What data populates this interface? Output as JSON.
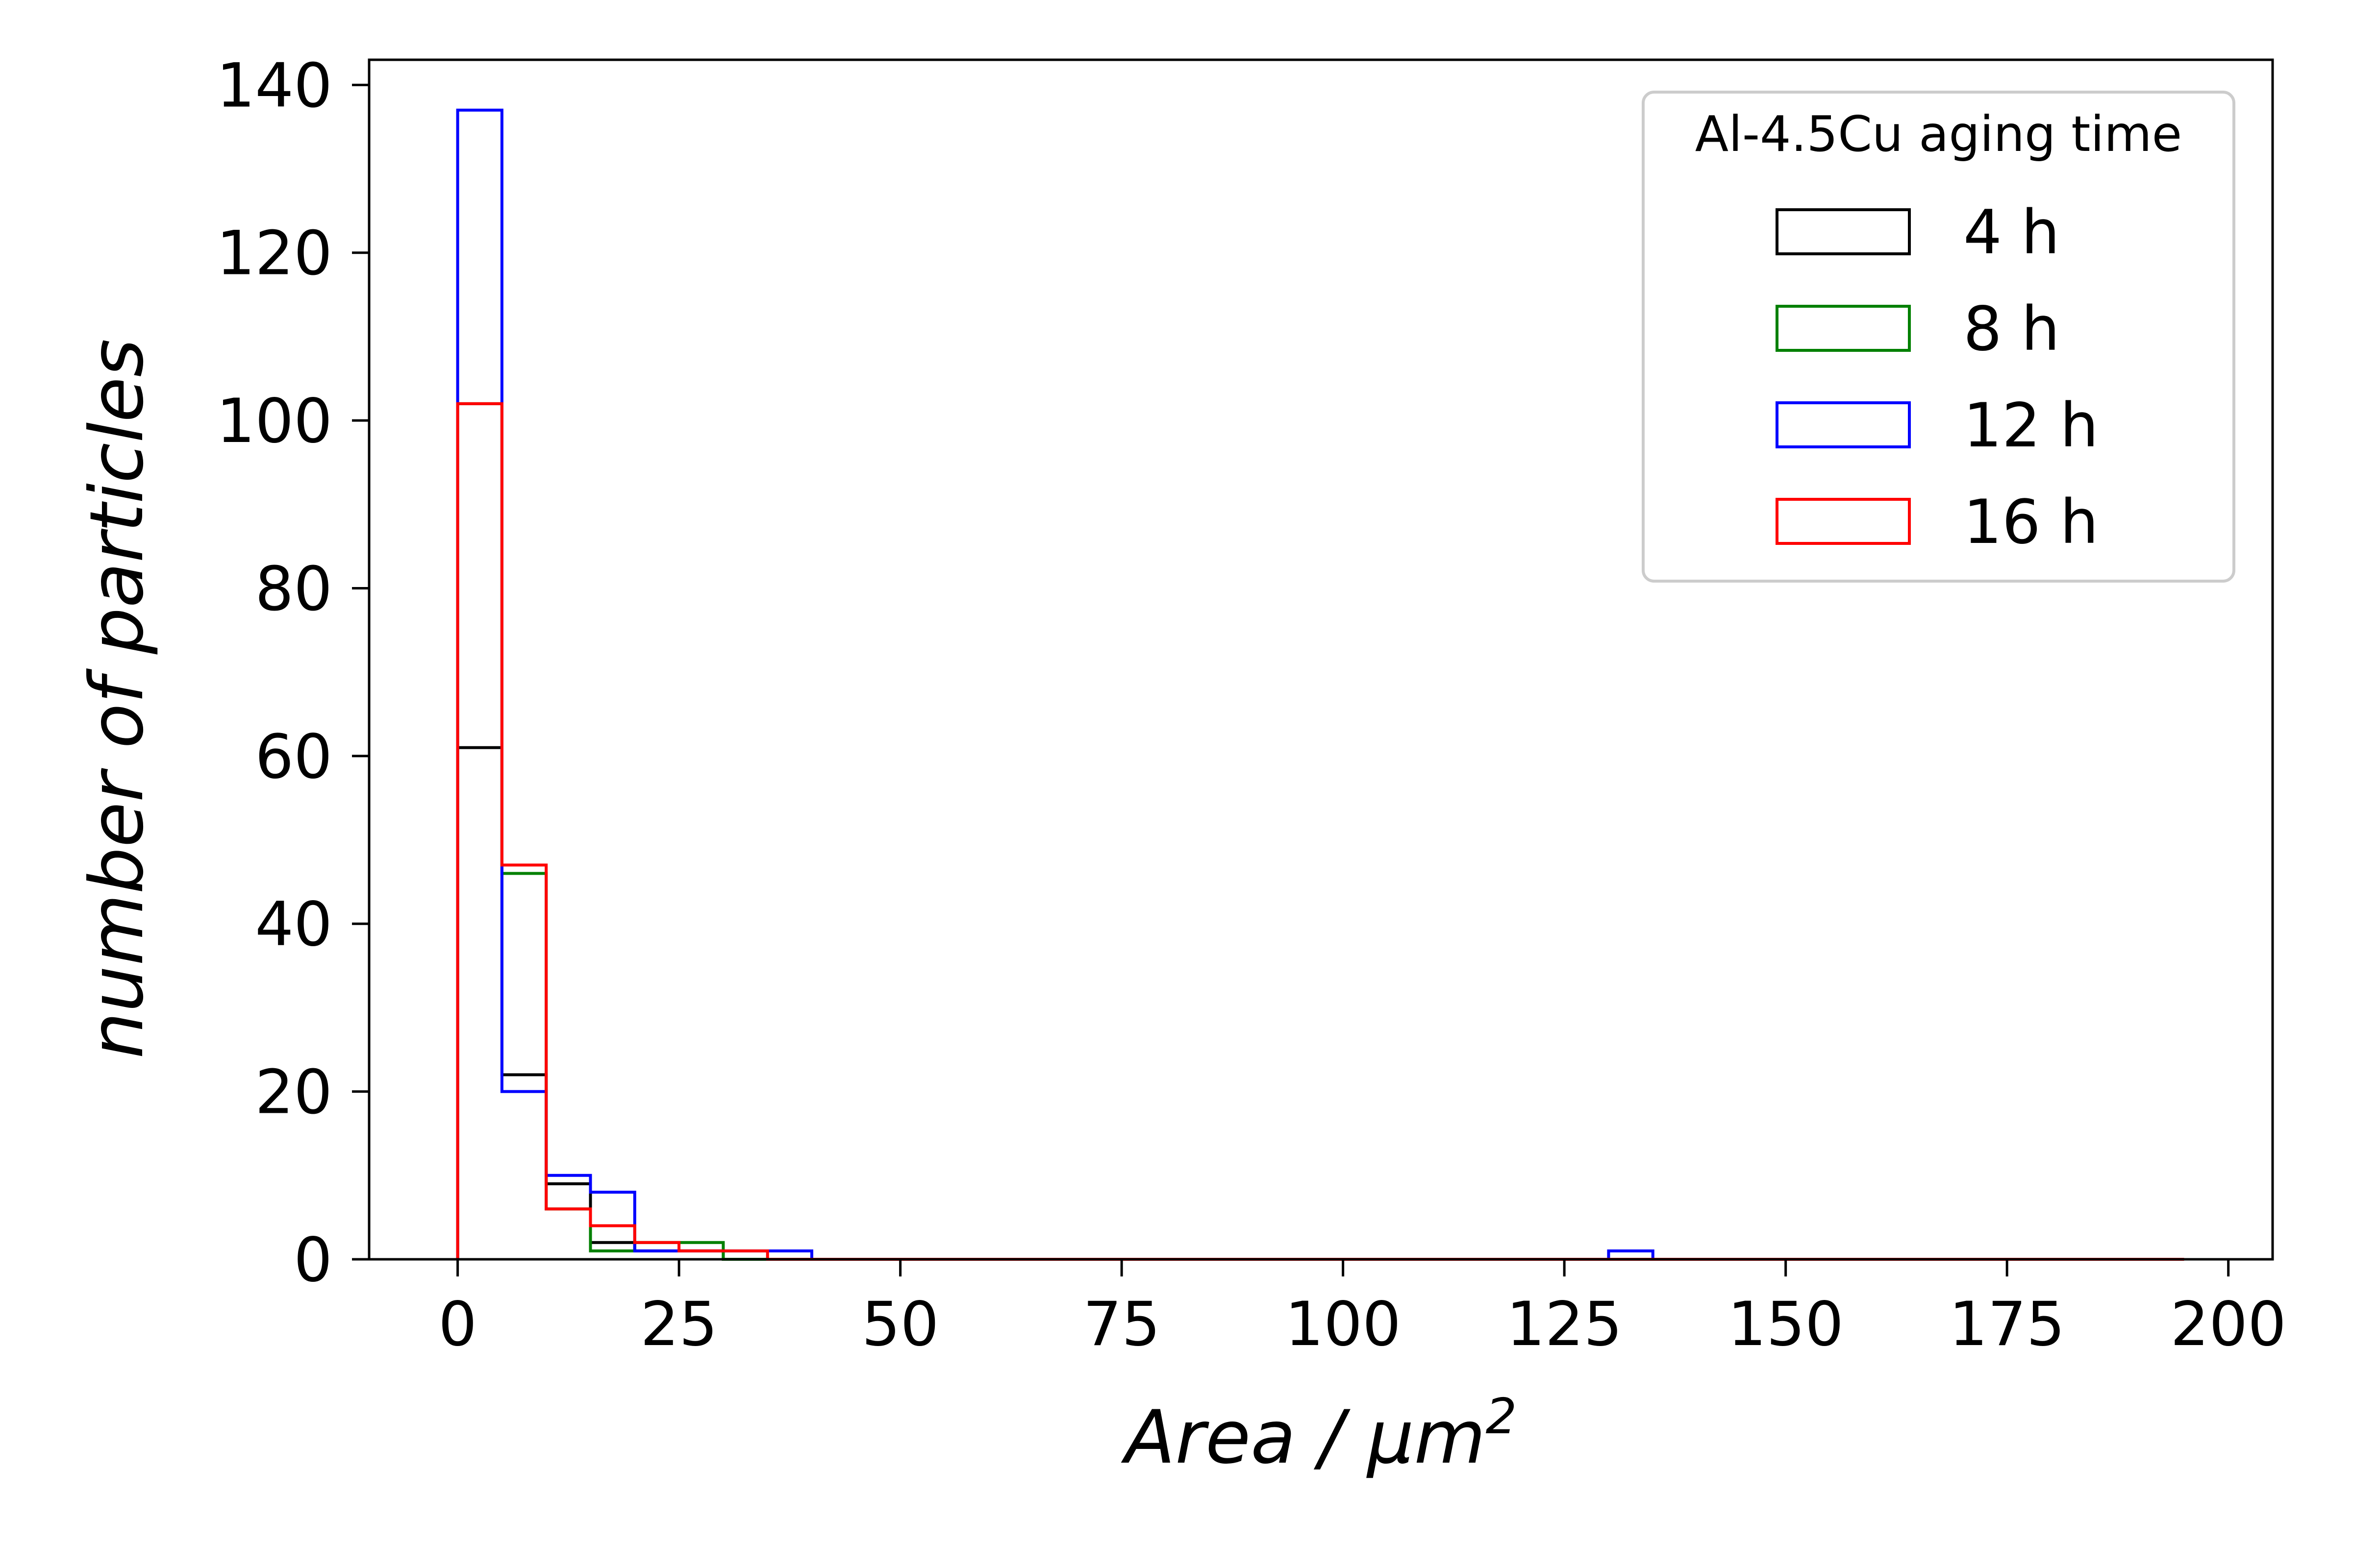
{
  "chart_data": {
    "type": "histogram",
    "xlabel_main": "Area",
    "xlabel_sep": " / ",
    "xlabel_unit": "μm",
    "xlabel_sup": "2",
    "ylabel": "number of particles",
    "xlim": [
      -10,
      205
    ],
    "ylim": [
      0,
      143
    ],
    "xticks": [
      0,
      25,
      50,
      75,
      100,
      125,
      150,
      175,
      200
    ],
    "xtick_labels": [
      "0",
      "25",
      "50",
      "75",
      "100",
      "125",
      "150",
      "175",
      "200"
    ],
    "yticks": [
      0,
      20,
      40,
      60,
      80,
      100,
      120,
      140
    ],
    "ytick_labels": [
      "0",
      "20",
      "40",
      "60",
      "80",
      "100",
      "120",
      "140"
    ],
    "bins": [
      0,
      5,
      10,
      15,
      20,
      25,
      30,
      35,
      40,
      45,
      50,
      55,
      60,
      65,
      70,
      75,
      80,
      85,
      90,
      95,
      100,
      105,
      110,
      115,
      120,
      125,
      130,
      135,
      140,
      145,
      150,
      155,
      160,
      165,
      170,
      175,
      180,
      185,
      190,
      195
    ],
    "histtype": "step",
    "legend": {
      "title": "Al-4.5Cu aging time",
      "position": "upper right"
    },
    "series": [
      {
        "name": "4 h",
        "color": "#000000",
        "values": [
          61,
          22,
          9,
          2,
          1,
          1,
          0,
          0,
          0,
          0,
          0,
          0,
          0,
          0,
          0,
          0,
          0,
          0,
          0,
          0,
          0,
          0,
          0,
          0,
          0,
          0,
          0,
          0,
          0,
          0,
          0,
          0,
          0,
          0,
          0,
          0,
          0,
          0,
          0
        ]
      },
      {
        "name": "8 h",
        "color": "#008000",
        "values": [
          102,
          46,
          6,
          1,
          2,
          2,
          0,
          0,
          0,
          0,
          0,
          0,
          0,
          0,
          0,
          0,
          0,
          0,
          0,
          0,
          0,
          0,
          0,
          0,
          0,
          0,
          0,
          0,
          0,
          0,
          0,
          0,
          0,
          0,
          0,
          0,
          0,
          0,
          0
        ]
      },
      {
        "name": "12 h",
        "color": "#0000ff",
        "values": [
          137,
          20,
          10,
          8,
          1,
          1,
          1,
          1,
          0,
          0,
          0,
          0,
          0,
          0,
          0,
          0,
          0,
          0,
          0,
          0,
          0,
          0,
          0,
          0,
          0,
          0,
          1,
          0,
          0,
          0,
          0,
          0,
          0,
          0,
          0,
          0,
          0,
          0,
          0
        ]
      },
      {
        "name": "16 h",
        "color": "#ff0000",
        "values": [
          102,
          47,
          6,
          4,
          2,
          1,
          1,
          0,
          0,
          0,
          0,
          0,
          0,
          0,
          0,
          0,
          0,
          0,
          0,
          0,
          0,
          0,
          0,
          0,
          0,
          0,
          0,
          0,
          0,
          0,
          0,
          0,
          0,
          0,
          0,
          0,
          0,
          0,
          0
        ]
      }
    ],
    "grid": false
  }
}
